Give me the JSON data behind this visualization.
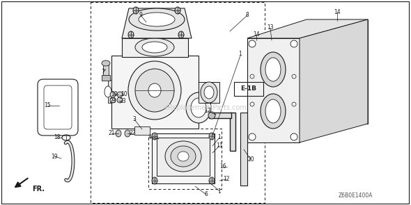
{
  "bg_color": "#ffffff",
  "line_color": "#1a1a1a",
  "text_color": "#1a1a1a",
  "watermark": "eReplacementParts.com",
  "diagram_code": "Z6B0E1400A",
  "ref_label": "E-1B",
  "fr_label": "FR."
}
